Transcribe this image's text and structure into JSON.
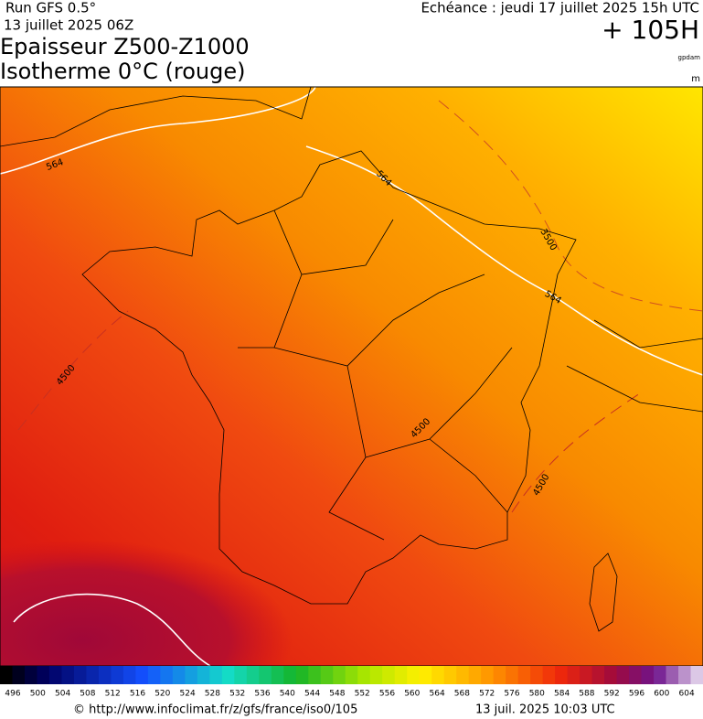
{
  "header": {
    "run": "Run GFS 0.5°",
    "date": "13 juillet 2025 06Z",
    "title_line1": "Epaisseur Z500-Z1000",
    "title_line2": "Isotherme 0°C (rouge)",
    "forecast": "Echéance : jeudi 17 juillet 2025 15h UTC",
    "lead": "+ 105H",
    "unit_thickness": "gpdam",
    "unit_isotherm": "m"
  },
  "map": {
    "contour_labels": [
      "564",
      "564",
      "564",
      "3500",
      "4500",
      "4500",
      "4500"
    ]
  },
  "legend": {
    "labels": [
      496,
      500,
      504,
      508,
      512,
      516,
      520,
      524,
      528,
      532,
      536,
      540,
      544,
      548,
      552,
      556,
      560,
      564,
      568,
      572,
      576,
      580,
      584,
      588,
      592,
      596,
      600,
      604
    ]
  },
  "footer": {
    "url": "© http://www.infoclimat.fr/z/gfs/france/iso0/105",
    "timestamp": "13 juil. 2025 10:03 UTC"
  }
}
